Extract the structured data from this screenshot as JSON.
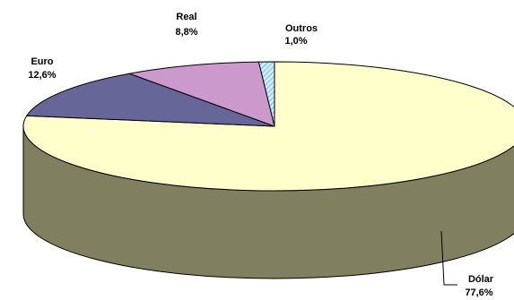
{
  "chart_data": {
    "type": "pie",
    "style": "3d-exploded-none",
    "slices": [
      {
        "name": "Dólar",
        "value": 77.6,
        "label": "Dólar",
        "value_label": "77,6%",
        "color": "#FFFFCC",
        "side_color": "#808060"
      },
      {
        "name": "Euro",
        "value": 12.6,
        "label": "Euro",
        "value_label": "12,6%",
        "color": "#666699",
        "side_color": "#3D3D5C"
      },
      {
        "name": "Real",
        "value": 8.8,
        "label": "Real",
        "value_label": "8,8%",
        "color": "#CC99CC",
        "side_color": "#7A5C7A"
      },
      {
        "name": "Outros",
        "value": 1.0,
        "label": "Outros",
        "value_label": "1,0%",
        "color": "#CCECFF",
        "side_color": "#7A8E99",
        "pattern": "hatched"
      }
    ]
  }
}
